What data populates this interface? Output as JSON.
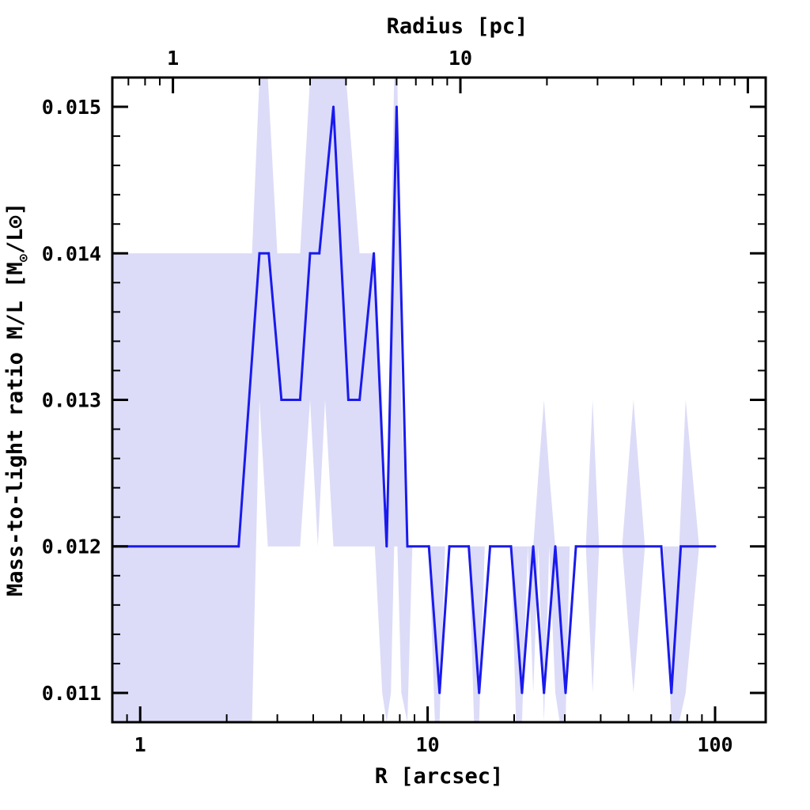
{
  "chart_data": {
    "type": "line",
    "x_scale": "log",
    "xlabel": "R [arcsec]",
    "xlim": [
      0.8,
      150
    ],
    "x_ticks": [
      1,
      10,
      100
    ],
    "x_tick_labels": [
      "1",
      "10",
      "100"
    ],
    "top_axis": {
      "label": "Radius [pc]",
      "ticks_x": [
        1.3,
        13
      ],
      "tick_labels": [
        "1",
        "10"
      ]
    },
    "ylabel_main": "Mass-to-light ratio M/L [M",
    "ylabel_sub": "⊙",
    "ylabel_tail": "/L⊙]",
    "ylim": [
      0.0108,
      0.0152
    ],
    "y_ticks": [
      0.011,
      0.012,
      0.013,
      0.014,
      0.015
    ],
    "y_tick_labels": [
      "0.011",
      "0.012",
      "0.013",
      "0.014",
      "0.015"
    ],
    "colors": {
      "line": "#1a1aee",
      "band": "#dcdcf8",
      "frame": "#000000"
    },
    "series": [
      {
        "x": [
          0.8,
          2.2,
          2.6,
          2.8,
          3.1,
          3.6,
          3.9,
          4.2,
          4.7,
          5.3,
          5.8,
          6.5,
          7.2,
          7.8,
          8.5,
          10.1,
          11.0,
          11.9,
          13.9,
          15.1,
          16.5,
          19.5,
          21.3,
          23.3,
          25.4,
          27.8,
          30.2,
          32.8,
          65,
          70.5,
          76,
          100
        ],
        "y": [
          0.012,
          0.012,
          0.014,
          0.014,
          0.013,
          0.013,
          0.014,
          0.014,
          0.015,
          0.013,
          0.013,
          0.014,
          0.012,
          0.015,
          0.012,
          0.012,
          0.011,
          0.012,
          0.012,
          0.011,
          0.012,
          0.012,
          0.011,
          0.012,
          0.011,
          0.012,
          0.011,
          0.012,
          0.012,
          0.011,
          0.012,
          0.012
        ]
      }
    ],
    "band": {
      "x": [
        0.8,
        2.2,
        2.45,
        2.6,
        2.78,
        3.0,
        3.2,
        3.6,
        3.9,
        4.15,
        4.4,
        4.7,
        5.2,
        5.8,
        6.2,
        6.55,
        6.95,
        7.2,
        7.45,
        7.65,
        7.85,
        8.1,
        8.5,
        8.85,
        9.4,
        10.1,
        10.6,
        11.0,
        11.5,
        11.9,
        13.3,
        13.9,
        14.5,
        15.1,
        15.8,
        16.5,
        19.0,
        19.5,
        20.3,
        21.3,
        22.3,
        23.3,
        24.3,
        25.4,
        26.5,
        27.8,
        28.8,
        30.2,
        31.2,
        32.8,
        35.5,
        37.5,
        39.5,
        43.0,
        47.5,
        52.0,
        57.0,
        66.0,
        70.5,
        75.0,
        79.0,
        88.0,
        100
      ],
      "upper": [
        0.014,
        0.014,
        0.014,
        0.0152,
        0.0152,
        0.014,
        0.014,
        0.014,
        0.0152,
        0.0152,
        0.0152,
        0.0152,
        0.0152,
        0.014,
        0.014,
        0.014,
        0.013,
        0.012,
        0.014,
        0.0152,
        0.0152,
        0.013,
        0.012,
        0.012,
        0.012,
        0.012,
        0.012,
        0.012,
        0.012,
        0.012,
        0.012,
        0.012,
        0.012,
        0.012,
        0.012,
        0.012,
        0.012,
        0.012,
        0.012,
        0.012,
        0.012,
        0.012,
        0.0125,
        0.013,
        0.0125,
        0.012,
        0.012,
        0.012,
        0.012,
        0.012,
        0.012,
        0.013,
        0.012,
        0.012,
        0.012,
        0.013,
        0.012,
        0.012,
        0.012,
        0.012,
        0.013,
        0.012,
        0.012
      ],
      "lower": [
        0.0108,
        0.0108,
        0.0108,
        0.013,
        0.012,
        0.012,
        0.012,
        0.012,
        0.013,
        0.012,
        0.013,
        0.012,
        0.012,
        0.012,
        0.012,
        0.012,
        0.011,
        0.0108,
        0.011,
        0.012,
        0.012,
        0.011,
        0.0108,
        0.012,
        0.012,
        0.012,
        0.0108,
        0.0108,
        0.012,
        0.012,
        0.012,
        0.012,
        0.0108,
        0.0108,
        0.012,
        0.012,
        0.012,
        0.012,
        0.0108,
        0.0108,
        0.012,
        0.011,
        0.012,
        0.0108,
        0.012,
        0.011,
        0.0108,
        0.0108,
        0.012,
        0.012,
        0.012,
        0.011,
        0.012,
        0.012,
        0.012,
        0.011,
        0.012,
        0.012,
        0.0108,
        0.0108,
        0.011,
        0.012,
        0.012
      ]
    }
  }
}
